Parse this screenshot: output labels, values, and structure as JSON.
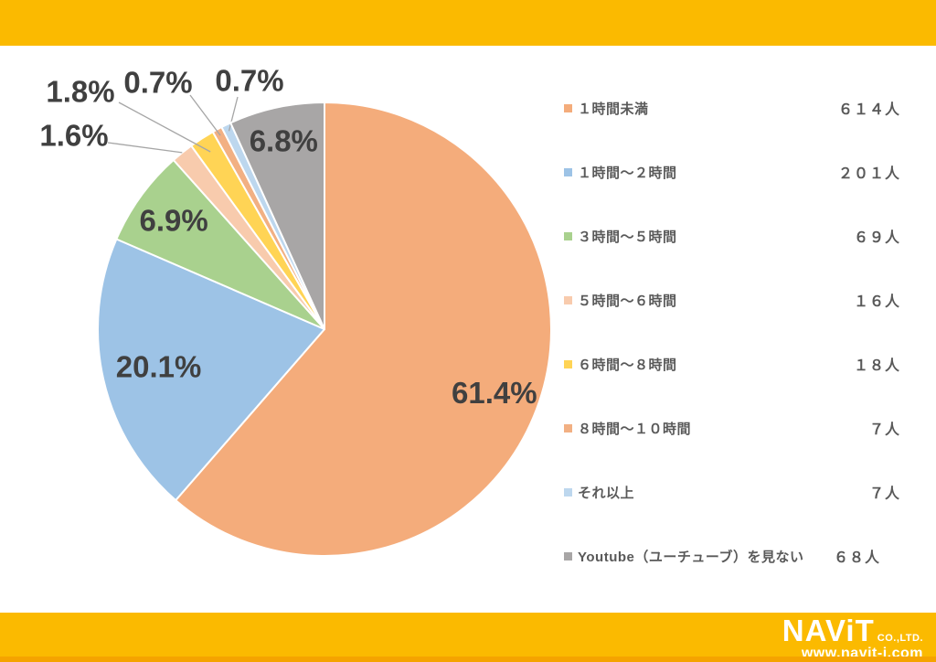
{
  "chart_data": {
    "type": "pie",
    "title": "",
    "legend_position": "right",
    "unit": "人",
    "slices": [
      {
        "label": "１時間未満",
        "count": "６１４人",
        "percent": 61.4,
        "percent_label": "61.4%",
        "color": "#F4AC7B"
      },
      {
        "label": "１時間～２時間",
        "count": "２０１人",
        "percent": 20.1,
        "percent_label": "20.1%",
        "color": "#9DC3E6"
      },
      {
        "label": "３時間～５時間",
        "count": "６９人",
        "percent": 6.9,
        "percent_label": "6.9%",
        "color": "#A9D18E"
      },
      {
        "label": "５時間～６時間",
        "count": "１６人",
        "percent": 1.6,
        "percent_label": "1.6%",
        "color": "#F8CBAD"
      },
      {
        "label": "６時間～８時間",
        "count": "１８人",
        "percent": 1.8,
        "percent_label": "1.8%",
        "color": "#FFD455"
      },
      {
        "label": "８時間～１０時間",
        "count": "７人",
        "percent": 0.7,
        "percent_label": "0.7%",
        "color": "#F2B083"
      },
      {
        "label": "それ以上",
        "count": "７人",
        "percent": 0.7,
        "percent_label": "0.7%",
        "color": "#BDD7EE"
      },
      {
        "label": "Youtube（ユーチューブ）を見ない",
        "count": "６８人",
        "percent": 6.8,
        "percent_label": "6.8%",
        "color": "#A8A6A6"
      }
    ]
  },
  "colors": {
    "band": "#FBBA00",
    "band_edge": "#F5A300",
    "percent_text": "#404040",
    "legend_text": "#595959",
    "leader_line": "#A6A6A6"
  },
  "footer": {
    "logo_name": "NAViT",
    "logo_suffix": "CO.,LTD.",
    "logo_url": "www.navit-j.com"
  }
}
